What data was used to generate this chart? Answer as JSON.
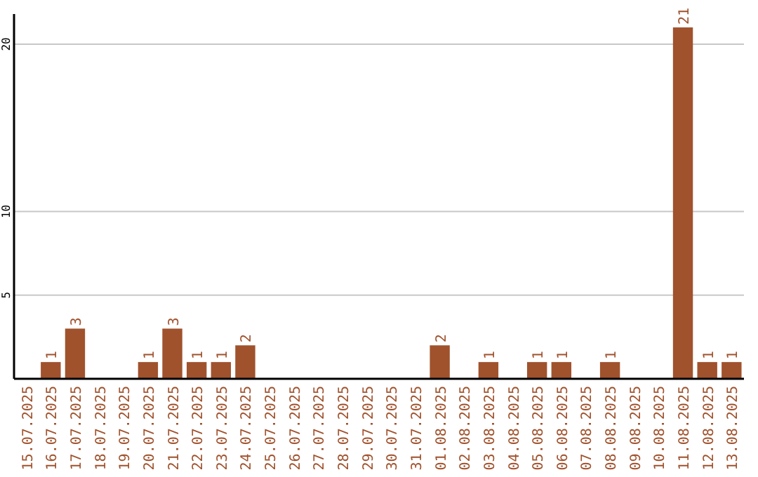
{
  "chart_data": {
    "type": "bar",
    "categories": [
      "15.07.2025",
      "16.07.2025",
      "17.07.2025",
      "18.07.2025",
      "19.07.2025",
      "20.07.2025",
      "21.07.2025",
      "22.07.2025",
      "23.07.2025",
      "24.07.2025",
      "25.07.2025",
      "26.07.2025",
      "27.07.2025",
      "28.07.2025",
      "29.07.2025",
      "30.07.2025",
      "31.07.2025",
      "01.08.2025",
      "02.08.2025",
      "03.08.2025",
      "04.08.2025",
      "05.08.2025",
      "06.08.2025",
      "07.08.2025",
      "08.08.2025",
      "09.08.2025",
      "10.08.2025",
      "11.08.2025",
      "12.08.2025",
      "13.08.2025"
    ],
    "values": [
      null,
      1,
      3,
      null,
      null,
      1,
      3,
      1,
      1,
      2,
      null,
      null,
      null,
      null,
      null,
      null,
      null,
      2,
      null,
      1,
      null,
      1,
      1,
      null,
      1,
      null,
      null,
      21,
      1,
      1
    ],
    "color": "#a0522d",
    "ylim": [
      0,
      21.8
    ],
    "yticks": [
      5,
      10,
      20
    ],
    "grid": "y",
    "data_labels": true
  }
}
